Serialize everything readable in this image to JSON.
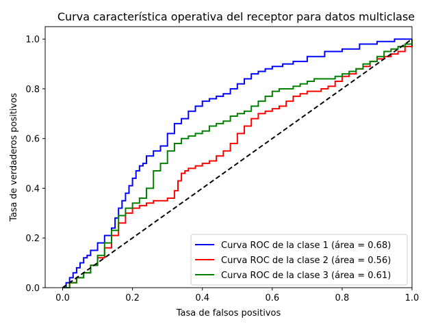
{
  "chart_data": {
    "type": "line",
    "title": "Curva característica operativa del receptor para datos multiclase",
    "xlabel": "Tasa de falsos positivos",
    "ylabel": "Tasa de verdaderos positivos",
    "xlim": [
      -0.05,
      1.0
    ],
    "ylim": [
      0.0,
      1.05
    ],
    "xticks": [
      "0.0",
      "0.2",
      "0.4",
      "0.6",
      "0.8",
      "1.0"
    ],
    "yticks": [
      "0.0",
      "0.2",
      "0.4",
      "0.6",
      "0.8",
      "1.0"
    ],
    "grid": false,
    "legend_position": "lower-right",
    "series": [
      {
        "name": "Curva ROC de la clase 1 (área = 0.68)",
        "color": "#0000ff",
        "x": [
          0.0,
          0.01,
          0.02,
          0.03,
          0.04,
          0.05,
          0.06,
          0.07,
          0.08,
          0.1,
          0.12,
          0.14,
          0.15,
          0.16,
          0.17,
          0.18,
          0.19,
          0.2,
          0.21,
          0.22,
          0.23,
          0.24,
          0.26,
          0.28,
          0.3,
          0.32,
          0.34,
          0.36,
          0.38,
          0.4,
          0.42,
          0.44,
          0.46,
          0.48,
          0.5,
          0.52,
          0.54,
          0.56,
          0.58,
          0.6,
          0.63,
          0.66,
          0.7,
          0.75,
          0.8,
          0.85,
          0.9,
          0.95,
          1.0
        ],
        "y": [
          0.0,
          0.02,
          0.04,
          0.06,
          0.08,
          0.1,
          0.12,
          0.13,
          0.15,
          0.18,
          0.21,
          0.24,
          0.28,
          0.32,
          0.35,
          0.38,
          0.41,
          0.44,
          0.47,
          0.49,
          0.5,
          0.53,
          0.55,
          0.57,
          0.62,
          0.66,
          0.68,
          0.71,
          0.73,
          0.75,
          0.76,
          0.77,
          0.78,
          0.8,
          0.82,
          0.84,
          0.86,
          0.87,
          0.88,
          0.89,
          0.9,
          0.91,
          0.93,
          0.95,
          0.96,
          0.98,
          0.99,
          1.0,
          1.0
        ]
      },
      {
        "name": "Curva ROC de la clase 2 (área = 0.56)",
        "color": "#ff0000",
        "x": [
          0.0,
          0.02,
          0.04,
          0.06,
          0.08,
          0.1,
          0.12,
          0.14,
          0.16,
          0.18,
          0.2,
          0.22,
          0.24,
          0.26,
          0.28,
          0.3,
          0.32,
          0.33,
          0.34,
          0.35,
          0.36,
          0.38,
          0.4,
          0.42,
          0.44,
          0.46,
          0.48,
          0.5,
          0.52,
          0.54,
          0.56,
          0.58,
          0.6,
          0.62,
          0.64,
          0.66,
          0.68,
          0.7,
          0.72,
          0.74,
          0.76,
          0.78,
          0.8,
          0.82,
          0.84,
          0.86,
          0.88,
          0.9,
          0.92,
          0.94,
          0.96,
          0.98,
          1.0
        ],
        "y": [
          0.0,
          0.02,
          0.04,
          0.06,
          0.09,
          0.12,
          0.16,
          0.21,
          0.26,
          0.3,
          0.32,
          0.33,
          0.34,
          0.35,
          0.35,
          0.36,
          0.39,
          0.43,
          0.46,
          0.47,
          0.48,
          0.49,
          0.5,
          0.51,
          0.53,
          0.55,
          0.58,
          0.62,
          0.65,
          0.68,
          0.7,
          0.71,
          0.72,
          0.73,
          0.75,
          0.77,
          0.78,
          0.79,
          0.79,
          0.8,
          0.81,
          0.83,
          0.85,
          0.86,
          0.88,
          0.89,
          0.91,
          0.92,
          0.93,
          0.94,
          0.95,
          0.97,
          1.0
        ]
      },
      {
        "name": "Curva ROC de la clase 3 (área = 0.61)",
        "color": "#008000",
        "x": [
          0.0,
          0.02,
          0.04,
          0.06,
          0.08,
          0.1,
          0.12,
          0.14,
          0.16,
          0.18,
          0.2,
          0.22,
          0.24,
          0.26,
          0.28,
          0.3,
          0.32,
          0.34,
          0.36,
          0.38,
          0.4,
          0.42,
          0.44,
          0.46,
          0.48,
          0.5,
          0.52,
          0.54,
          0.56,
          0.58,
          0.6,
          0.62,
          0.64,
          0.66,
          0.68,
          0.7,
          0.72,
          0.74,
          0.76,
          0.78,
          0.8,
          0.82,
          0.84,
          0.86,
          0.88,
          0.9,
          0.92,
          0.94,
          0.96,
          0.98,
          1.0
        ],
        "y": [
          0.0,
          0.02,
          0.04,
          0.06,
          0.09,
          0.13,
          0.18,
          0.23,
          0.29,
          0.32,
          0.34,
          0.36,
          0.4,
          0.47,
          0.5,
          0.55,
          0.58,
          0.6,
          0.61,
          0.62,
          0.63,
          0.65,
          0.66,
          0.67,
          0.69,
          0.7,
          0.71,
          0.73,
          0.75,
          0.77,
          0.79,
          0.8,
          0.8,
          0.81,
          0.82,
          0.83,
          0.84,
          0.84,
          0.84,
          0.85,
          0.86,
          0.87,
          0.88,
          0.9,
          0.91,
          0.93,
          0.95,
          0.96,
          0.97,
          0.98,
          1.0
        ]
      },
      {
        "name": "",
        "color": "#000000",
        "dashed": true,
        "x": [
          0.0,
          1.0
        ],
        "y": [
          0.0,
          1.0
        ]
      }
    ]
  }
}
